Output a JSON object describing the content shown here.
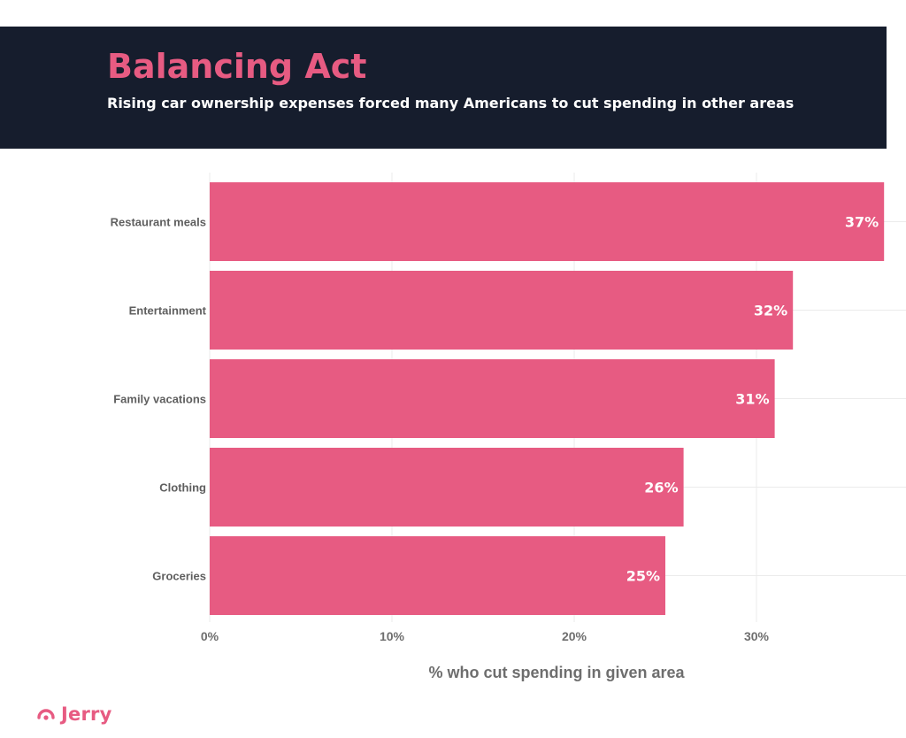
{
  "header": {
    "title": "Balancing Act",
    "subtitle": "Rising car ownership expenses forced many Americans to cut spending in other areas"
  },
  "chart_data": {
    "type": "bar",
    "orientation": "horizontal",
    "title": "Balancing Act",
    "subtitle": "Rising car ownership expenses forced many Americans to cut spending in other areas",
    "categories": [
      "Restaurant meals",
      "Entertainment",
      "Family vacations",
      "Clothing",
      "Groceries"
    ],
    "values": [
      37,
      32,
      31,
      26,
      25
    ],
    "value_labels": [
      "37%",
      "32%",
      "31%",
      "26%",
      "25%"
    ],
    "xlabel": "% who cut spending in given area",
    "ylabel": "",
    "xlim": [
      0,
      37
    ],
    "x_ticks": [
      0,
      10,
      20,
      30
    ],
    "x_tick_labels": [
      "0%",
      "10%",
      "20%",
      "30%"
    ],
    "grid": true,
    "bar_color": "#e75b82"
  },
  "brand": {
    "name": "Jerry",
    "color": "#e75b82",
    "icon": "jerry-logo-icon"
  },
  "colors": {
    "header_bg": "#161d2d",
    "accent": "#e75b82"
  }
}
